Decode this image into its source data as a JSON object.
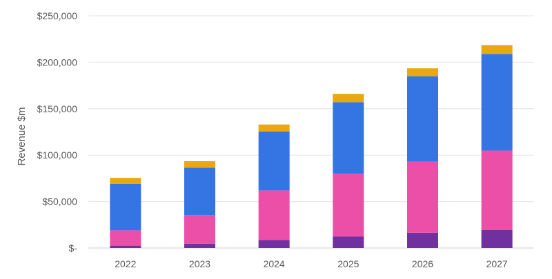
{
  "chart_data": {
    "type": "bar",
    "stacked": true,
    "title": "",
    "xlabel": "",
    "ylabel": "Revenue $m",
    "categories": [
      "2022",
      "2023",
      "2024",
      "2025",
      "2026",
      "2027"
    ],
    "ylim": [
      0,
      250000
    ],
    "yticks": [
      0,
      50000,
      100000,
      150000,
      200000,
      250000
    ],
    "ytick_labels": [
      "$-",
      "$50,000",
      "$100,000",
      "$150,000",
      "$200,000",
      "$250,000"
    ],
    "grid": true,
    "legend": "none",
    "series": [
      {
        "color": "#7030a0",
        "values": [
          2500,
          4500,
          8500,
          12500,
          16500,
          19500
        ]
      },
      {
        "color": "#ec4fa8",
        "values": [
          16500,
          31000,
          53500,
          67500,
          76500,
          85500
        ]
      },
      {
        "color": "#3574e3",
        "values": [
          50000,
          51000,
          63500,
          77000,
          92000,
          104000
        ]
      },
      {
        "color": "#eaa710",
        "values": [
          6500,
          7000,
          7500,
          9000,
          8500,
          9500
        ]
      }
    ]
  }
}
